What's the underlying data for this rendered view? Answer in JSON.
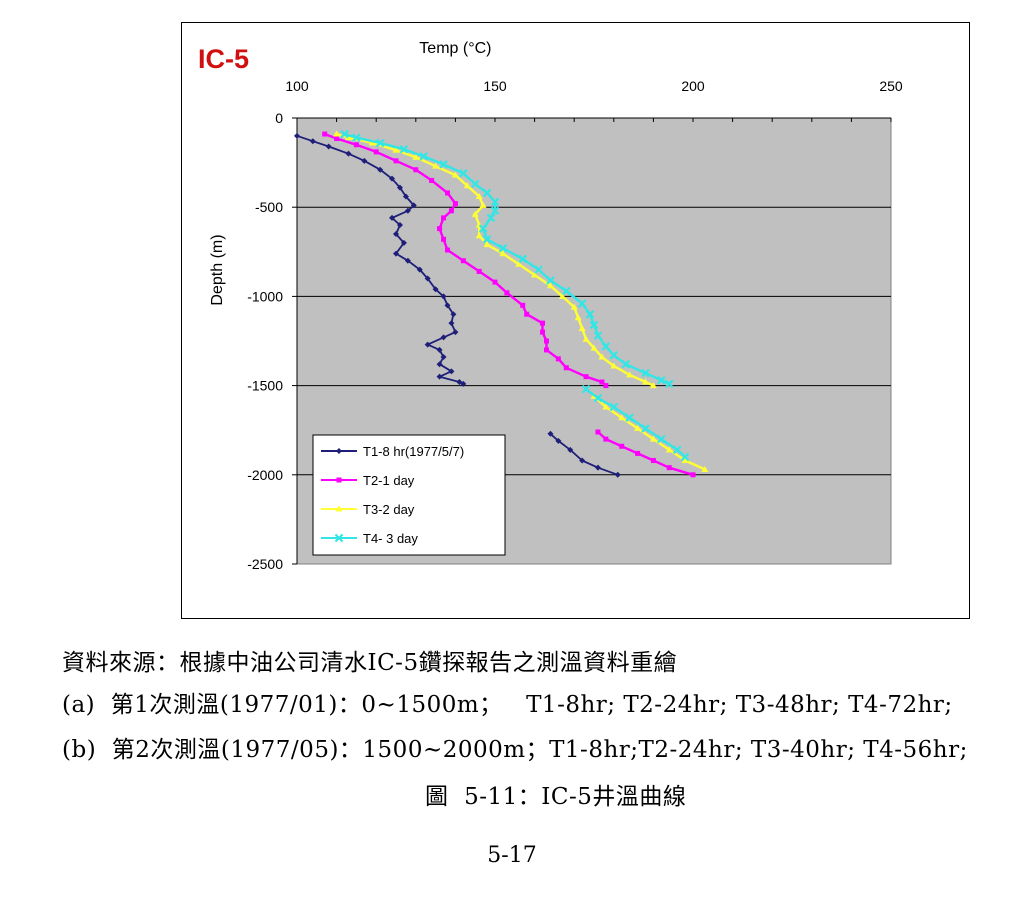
{
  "chart_data": {
    "type": "line",
    "title": "IC-5",
    "xlabel": "Temp (°C)",
    "ylabel": "Depth (m)",
    "xlim": [
      100,
      250
    ],
    "ylim": [
      -2500,
      0
    ],
    "x_ticks": [
      100,
      150,
      200,
      250
    ],
    "y_ticks": [
      0,
      -500,
      -1000,
      -1500,
      -2000,
      -2500
    ],
    "x_axis_position": "top",
    "grid": "horizontal",
    "legend_position": "bottom-left",
    "background_color": "#C0C0C0",
    "series": [
      {
        "name": "T1-8 hr(1977/5/7)",
        "color": "#1F1F7A",
        "marker": "diamond",
        "segments": [
          [
            [
              100,
              -100
            ],
            [
              104,
              -130
            ],
            [
              108,
              -160
            ],
            [
              113,
              -200
            ],
            [
              117,
              -240
            ],
            [
              121,
              -290
            ],
            [
              124,
              -340
            ],
            [
              126,
              -390
            ],
            [
              127.5,
              -440
            ],
            [
              129.5,
              -490
            ],
            [
              128,
              -520
            ],
            [
              124,
              -560
            ],
            [
              126,
              -600
            ],
            [
              125,
              -650
            ],
            [
              127,
              -700
            ],
            [
              125,
              -760
            ],
            [
              128,
              -800
            ],
            [
              131,
              -850
            ],
            [
              133,
              -900
            ],
            [
              135,
              -960
            ],
            [
              137,
              -1000
            ],
            [
              138,
              -1050
            ],
            [
              139.5,
              -1100
            ],
            [
              139,
              -1150
            ],
            [
              140,
              -1200
            ],
            [
              137,
              -1230
            ],
            [
              133,
              -1270
            ],
            [
              136,
              -1300
            ],
            [
              137,
              -1340
            ],
            [
              136,
              -1380
            ],
            [
              139,
              -1420
            ],
            [
              136,
              -1450
            ],
            [
              141,
              -1480
            ],
            [
              142,
              -1490
            ]
          ],
          [
            [
              164,
              -1770
            ],
            [
              166,
              -1810
            ],
            [
              169,
              -1860
            ],
            [
              172,
              -1920
            ],
            [
              176,
              -1960
            ],
            [
              181,
              -2000
            ]
          ]
        ]
      },
      {
        "name": "T2-1 day",
        "color": "#FF00FF",
        "marker": "square",
        "segments": [
          [
            [
              107,
              -90
            ],
            [
              110,
              -115
            ],
            [
              115,
              -150
            ],
            [
              120,
              -190
            ],
            [
              125,
              -240
            ],
            [
              130,
              -290
            ],
            [
              134,
              -350
            ],
            [
              138,
              -420
            ],
            [
              140,
              -480
            ],
            [
              139,
              -520
            ],
            [
              137,
              -560
            ],
            [
              136,
              -620
            ],
            [
              137,
              -680
            ],
            [
              138,
              -740
            ],
            [
              142,
              -800
            ],
            [
              146,
              -860
            ],
            [
              150,
              -920
            ],
            [
              153,
              -980
            ],
            [
              157,
              -1050
            ],
            [
              158,
              -1100
            ],
            [
              162,
              -1150
            ],
            [
              162,
              -1200
            ],
            [
              163,
              -1250
            ],
            [
              163,
              -1300
            ],
            [
              166,
              -1350
            ],
            [
              168,
              -1400
            ],
            [
              173,
              -1450
            ],
            [
              177,
              -1480
            ],
            [
              178,
              -1500
            ]
          ],
          [
            [
              176,
              -1760
            ],
            [
              178,
              -1800
            ],
            [
              182,
              -1840
            ],
            [
              186,
              -1880
            ],
            [
              190,
              -1920
            ],
            [
              194,
              -1960
            ],
            [
              200,
              -2000
            ]
          ]
        ]
      },
      {
        "name": "T3-2 day",
        "color": "#FFFF33",
        "marker": "triangle",
        "segments": [
          [
            [
              110,
              -90
            ],
            [
              113,
              -110
            ],
            [
              119,
              -140
            ],
            [
              125,
              -180
            ],
            [
              130,
              -220
            ],
            [
              135,
              -270
            ],
            [
              140,
              -320
            ],
            [
              143,
              -380
            ],
            [
              146,
              -440
            ],
            [
              147,
              -490
            ],
            [
              145,
              -540
            ],
            [
              146,
              -600
            ],
            [
              146,
              -660
            ],
            [
              148,
              -710
            ],
            [
              152,
              -760
            ],
            [
              156,
              -820
            ],
            [
              160,
              -880
            ],
            [
              164,
              -940
            ],
            [
              167,
              -1000
            ],
            [
              170,
              -1060
            ],
            [
              171,
              -1120
            ],
            [
              172,
              -1180
            ],
            [
              173,
              -1240
            ],
            [
              175,
              -1290
            ],
            [
              177,
              -1340
            ],
            [
              180,
              -1390
            ],
            [
              184,
              -1440
            ],
            [
              188,
              -1480
            ],
            [
              190,
              -1500
            ]
          ],
          [
            [
              175,
              -1560
            ],
            [
              178,
              -1620
            ],
            [
              182,
              -1680
            ],
            [
              186,
              -1740
            ],
            [
              190,
              -1800
            ],
            [
              194,
              -1860
            ],
            [
              198,
              -1920
            ],
            [
              203,
              -1970
            ]
          ]
        ]
      },
      {
        "name": "T4- 3 day",
        "color": "#33E6E6",
        "marker": "x",
        "segments": [
          [
            [
              112,
              -90
            ],
            [
              115,
              -110
            ],
            [
              121,
              -140
            ],
            [
              127,
              -175
            ],
            [
              132,
              -215
            ],
            [
              137,
              -260
            ],
            [
              142,
              -310
            ],
            [
              145,
              -370
            ],
            [
              148,
              -420
            ],
            [
              150,
              -470
            ],
            [
              150,
              -520
            ],
            [
              149,
              -560
            ],
            [
              147,
              -620
            ],
            [
              148,
              -680
            ],
            [
              152,
              -730
            ],
            [
              157,
              -790
            ],
            [
              161,
              -850
            ],
            [
              164,
              -910
            ],
            [
              168,
              -970
            ],
            [
              172,
              -1040
            ],
            [
              174,
              -1100
            ],
            [
              175,
              -1160
            ],
            [
              176,
              -1220
            ],
            [
              178,
              -1280
            ],
            [
              180,
              -1330
            ],
            [
              183,
              -1380
            ],
            [
              188,
              -1430
            ],
            [
              192,
              -1470
            ],
            [
              194,
              -1490
            ]
          ],
          [
            [
              173,
              -1520
            ],
            [
              176,
              -1570
            ],
            [
              180,
              -1620
            ],
            [
              184,
              -1680
            ],
            [
              188,
              -1740
            ],
            [
              192,
              -1800
            ],
            [
              196,
              -1860
            ],
            [
              198,
              -1900
            ]
          ]
        ]
      }
    ]
  },
  "captions": {
    "source": "資料來源：根據中油公司清水IC-5鑽探報告之測溫資料重繪",
    "line_a": "(a)  第1次測溫(1977/01)：0~1500m；   T1-8hr; T2-24hr; T3-48hr; T4-72hr;",
    "line_b": "(b)  第2次測溫(1977/05)：1500~2000m；T1-8hr;T2-24hr; T3-40hr; T4-56hr;",
    "figure": "圖  5-11：IC-5井溫曲線",
    "page_number": "5-17"
  }
}
